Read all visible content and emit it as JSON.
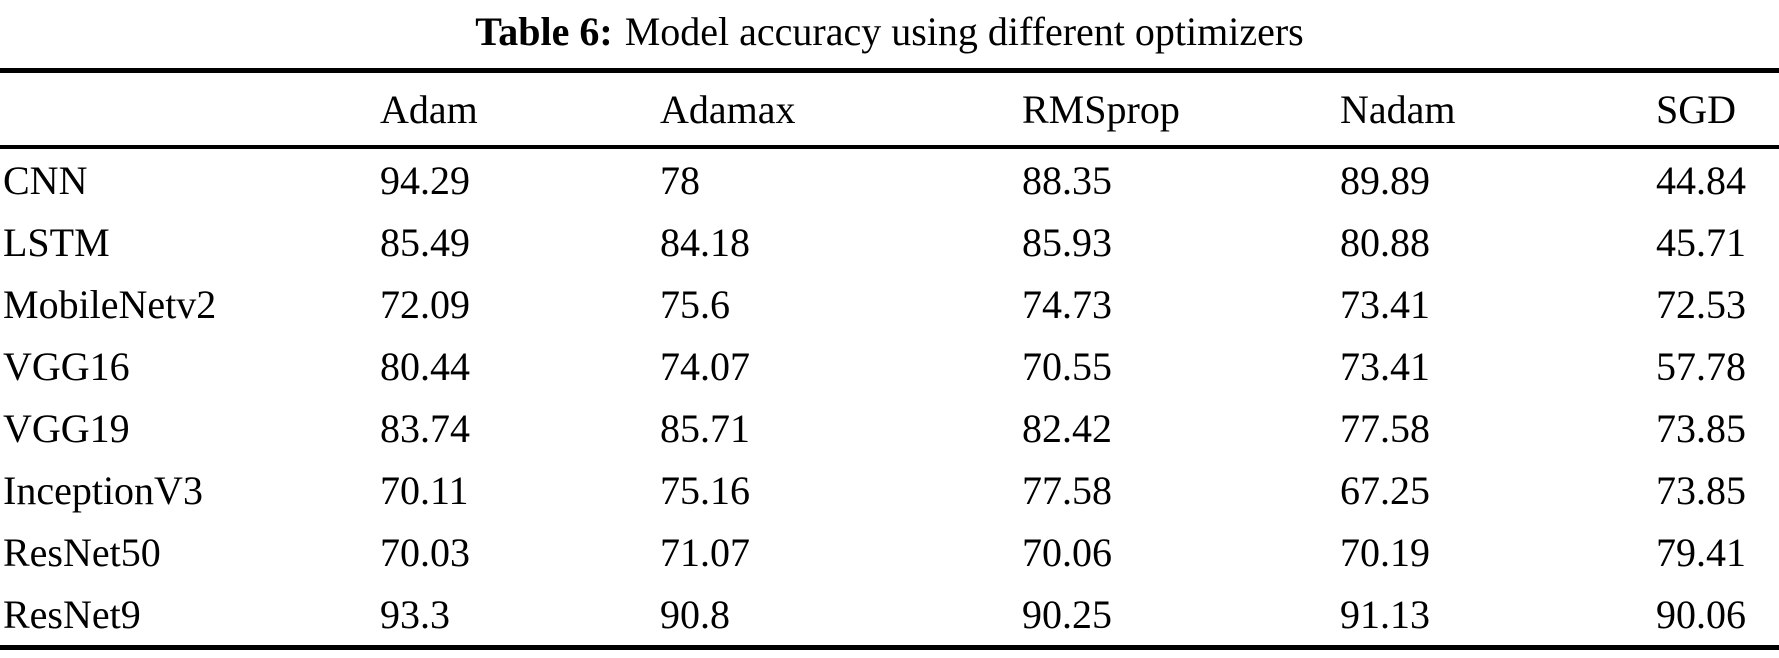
{
  "caption": {
    "label": "Table 6:",
    "title": "Model accuracy using different optimizers"
  },
  "table": {
    "header": [
      "",
      "Adam",
      "Adamax",
      "RMSprop",
      "Nadam",
      "SGD"
    ],
    "rows": [
      [
        "CNN",
        "94.29",
        "78",
        "88.35",
        "89.89",
        "44.84"
      ],
      [
        "LSTM",
        "85.49",
        "84.18",
        "85.93",
        "80.88",
        "45.71"
      ],
      [
        "MobileNetv2",
        "72.09",
        "75.6",
        "74.73",
        "73.41",
        "72.53"
      ],
      [
        "VGG16",
        "80.44",
        "74.07",
        "70.55",
        "73.41",
        "57.78"
      ],
      [
        "VGG19",
        "83.74",
        "85.71",
        "82.42",
        "77.58",
        "73.85"
      ],
      [
        "InceptionV3",
        "70.11",
        "75.16",
        "77.58",
        "67.25",
        "73.85"
      ],
      [
        "ResNet50",
        "70.03",
        "71.07",
        "70.06",
        "70.19",
        "79.41"
      ],
      [
        "ResNet9",
        "93.3",
        "90.8",
        "90.25",
        "91.13",
        "90.06"
      ]
    ]
  },
  "chart_data": {
    "type": "table",
    "title": "Table 6: Model accuracy using different optimizers",
    "categories": [
      "CNN",
      "LSTM",
      "MobileNetv2",
      "VGG16",
      "VGG19",
      "InceptionV3",
      "ResNet50",
      "ResNet9"
    ],
    "series": [
      {
        "name": "Adam",
        "values": [
          94.29,
          85.49,
          72.09,
          80.44,
          83.74,
          70.11,
          70.03,
          93.3
        ]
      },
      {
        "name": "Adamax",
        "values": [
          78,
          84.18,
          75.6,
          74.07,
          85.71,
          75.16,
          71.07,
          90.8
        ]
      },
      {
        "name": "RMSprop",
        "values": [
          88.35,
          85.93,
          74.73,
          70.55,
          82.42,
          77.58,
          70.06,
          90.25
        ]
      },
      {
        "name": "Nadam",
        "values": [
          89.89,
          80.88,
          73.41,
          73.41,
          77.58,
          67.25,
          70.19,
          91.13
        ]
      },
      {
        "name": "SGD",
        "values": [
          44.84,
          45.71,
          72.53,
          57.78,
          73.85,
          73.85,
          79.41,
          90.06
        ]
      }
    ]
  },
  "colors": {
    "text": "#000000",
    "background": "#ffffff",
    "rule": "#000000"
  }
}
